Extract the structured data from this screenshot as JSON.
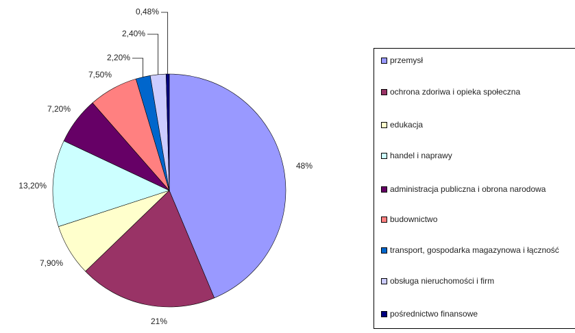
{
  "chart_data": {
    "type": "pie",
    "categories": [
      "przemysł",
      "ochrona zdoriwa i opieka społeczna",
      "edukacja",
      "handel i naprawy",
      "administracja publiczna i obrona narodowa",
      "budownictwo",
      "transport, gospodarka magazynowa i łączność",
      "obsługa nieruchomości i firm",
      "pośrednictwo finansowe"
    ],
    "values": [
      48,
      21,
      7.9,
      13.2,
      7.2,
      7.5,
      2.2,
      2.4,
      0.48
    ],
    "value_labels": [
      "48%",
      "21%",
      "7,90%",
      "13,20%",
      "7,20%",
      "7,50%",
      "2,20%",
      "2,40%",
      "0,48%"
    ],
    "colors": [
      "#9999ff",
      "#993366",
      "#ffffcc",
      "#ccffff",
      "#660066",
      "#ff8080",
      "#0066cc",
      "#ccccff",
      "#000080"
    ],
    "legend": "right"
  }
}
